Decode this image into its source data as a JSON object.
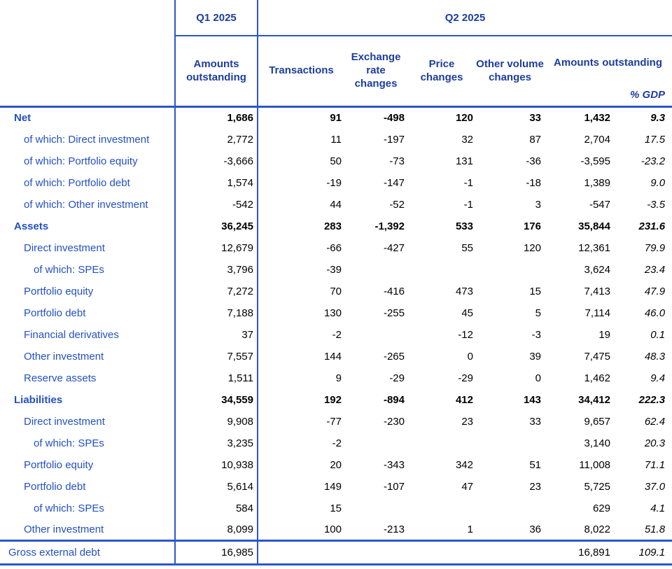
{
  "table": {
    "header": {
      "q1_label": "Q1 2025",
      "q2_label": "Q2 2025",
      "amounts_q1": "Amounts outstanding",
      "transactions": "Transactions",
      "exchange": "Exchange rate changes",
      "price": "Price changes",
      "other_volume": "Other volume changes",
      "amounts_q2": "Amounts outstanding",
      "gdp": "% GDP"
    },
    "rows": [
      {
        "label": "Net",
        "indent": 0,
        "bold": true,
        "q1": "1,686",
        "trans": "91",
        "fx": "-498",
        "price": "120",
        "vol": "33",
        "q2": "1,432",
        "gdp": "9.3"
      },
      {
        "label": "of which: Direct investment",
        "indent": 1,
        "bold": false,
        "q1": "2,772",
        "trans": "11",
        "fx": "-197",
        "price": "32",
        "vol": "87",
        "q2": "2,704",
        "gdp": "17.5"
      },
      {
        "label": "of which: Portfolio equity",
        "indent": 1,
        "bold": false,
        "q1": "-3,666",
        "trans": "50",
        "fx": "-73",
        "price": "131",
        "vol": "-36",
        "q2": "-3,595",
        "gdp": "-23.2"
      },
      {
        "label": "of which: Portfolio debt",
        "indent": 1,
        "bold": false,
        "q1": "1,574",
        "trans": "-19",
        "fx": "-147",
        "price": "-1",
        "vol": "-18",
        "q2": "1,389",
        "gdp": "9.0"
      },
      {
        "label": "of which: Other investment",
        "indent": 1,
        "bold": false,
        "q1": "-542",
        "trans": "44",
        "fx": "-52",
        "price": "-1",
        "vol": "3",
        "q2": "-547",
        "gdp": "-3.5"
      },
      {
        "label": "Assets",
        "indent": 0,
        "bold": true,
        "q1": "36,245",
        "trans": "283",
        "fx": "-1,392",
        "price": "533",
        "vol": "176",
        "q2": "35,844",
        "gdp": "231.6"
      },
      {
        "label": "Direct investment",
        "indent": 1,
        "bold": false,
        "q1": "12,679",
        "trans": "-66",
        "fx": "-427",
        "price": "55",
        "vol": "120",
        "q2": "12,361",
        "gdp": "79.9"
      },
      {
        "label": "of which: SPEs",
        "indent": 2,
        "bold": false,
        "q1": "3,796",
        "trans": "-39",
        "fx": "",
        "price": "",
        "vol": "",
        "q2": "3,624",
        "gdp": "23.4"
      },
      {
        "label": "Portfolio equity",
        "indent": 1,
        "bold": false,
        "q1": "7,272",
        "trans": "70",
        "fx": "-416",
        "price": "473",
        "vol": "15",
        "q2": "7,413",
        "gdp": "47.9"
      },
      {
        "label": "Portfolio debt",
        "indent": 1,
        "bold": false,
        "q1": "7,188",
        "trans": "130",
        "fx": "-255",
        "price": "45",
        "vol": "5",
        "q2": "7,114",
        "gdp": "46.0"
      },
      {
        "label": "Financial derivatives",
        "indent": 1,
        "bold": false,
        "q1": "37",
        "trans": "-2",
        "fx": "",
        "price": "-12",
        "vol": "-3",
        "q2": "19",
        "gdp": "0.1"
      },
      {
        "label": "Other investment",
        "indent": 1,
        "bold": false,
        "q1": "7,557",
        "trans": "144",
        "fx": "-265",
        "price": "0",
        "vol": "39",
        "q2": "7,475",
        "gdp": "48.3"
      },
      {
        "label": "Reserve assets",
        "indent": 1,
        "bold": false,
        "q1": "1,511",
        "trans": "9",
        "fx": "-29",
        "price": "-29",
        "vol": "0",
        "q2": "1,462",
        "gdp": "9.4"
      },
      {
        "label": "Liabilities",
        "indent": 0,
        "bold": true,
        "q1": "34,559",
        "trans": "192",
        "fx": "-894",
        "price": "412",
        "vol": "143",
        "q2": "34,412",
        "gdp": "222.3"
      },
      {
        "label": "Direct investment",
        "indent": 1,
        "bold": false,
        "q1": "9,908",
        "trans": "-77",
        "fx": "-230",
        "price": "23",
        "vol": "33",
        "q2": "9,657",
        "gdp": "62.4"
      },
      {
        "label": "of which: SPEs",
        "indent": 2,
        "bold": false,
        "q1": "3,235",
        "trans": "-2",
        "fx": "",
        "price": "",
        "vol": "",
        "q2": "3,140",
        "gdp": "20.3"
      },
      {
        "label": "Portfolio equity",
        "indent": 1,
        "bold": false,
        "q1": "10,938",
        "trans": "20",
        "fx": "-343",
        "price": "342",
        "vol": "51",
        "q2": "11,008",
        "gdp": "71.1"
      },
      {
        "label": "Portfolio debt",
        "indent": 1,
        "bold": false,
        "q1": "5,614",
        "trans": "149",
        "fx": "-107",
        "price": "47",
        "vol": "23",
        "q2": "5,725",
        "gdp": "37.0"
      },
      {
        "label": "of which: SPEs",
        "indent": 2,
        "bold": false,
        "q1": "584",
        "trans": "15",
        "fx": "",
        "price": "",
        "vol": "",
        "q2": "629",
        "gdp": "4.1"
      },
      {
        "label": "Other investment",
        "indent": 1,
        "bold": false,
        "q1": "8,099",
        "trans": "100",
        "fx": "-213",
        "price": "1",
        "vol": "36",
        "q2": "8,022",
        "gdp": "51.8"
      }
    ],
    "footer": {
      "label": "Gross external debt",
      "q1": "16,985",
      "trans": "",
      "fx": "",
      "price": "",
      "vol": "",
      "q2": "16,891",
      "gdp": "109.1"
    }
  },
  "colors": {
    "label_blue": "#2350c4",
    "header_navy": "#1d3d9e",
    "line_blue": "#2b57c8",
    "number_black": "#000000"
  }
}
